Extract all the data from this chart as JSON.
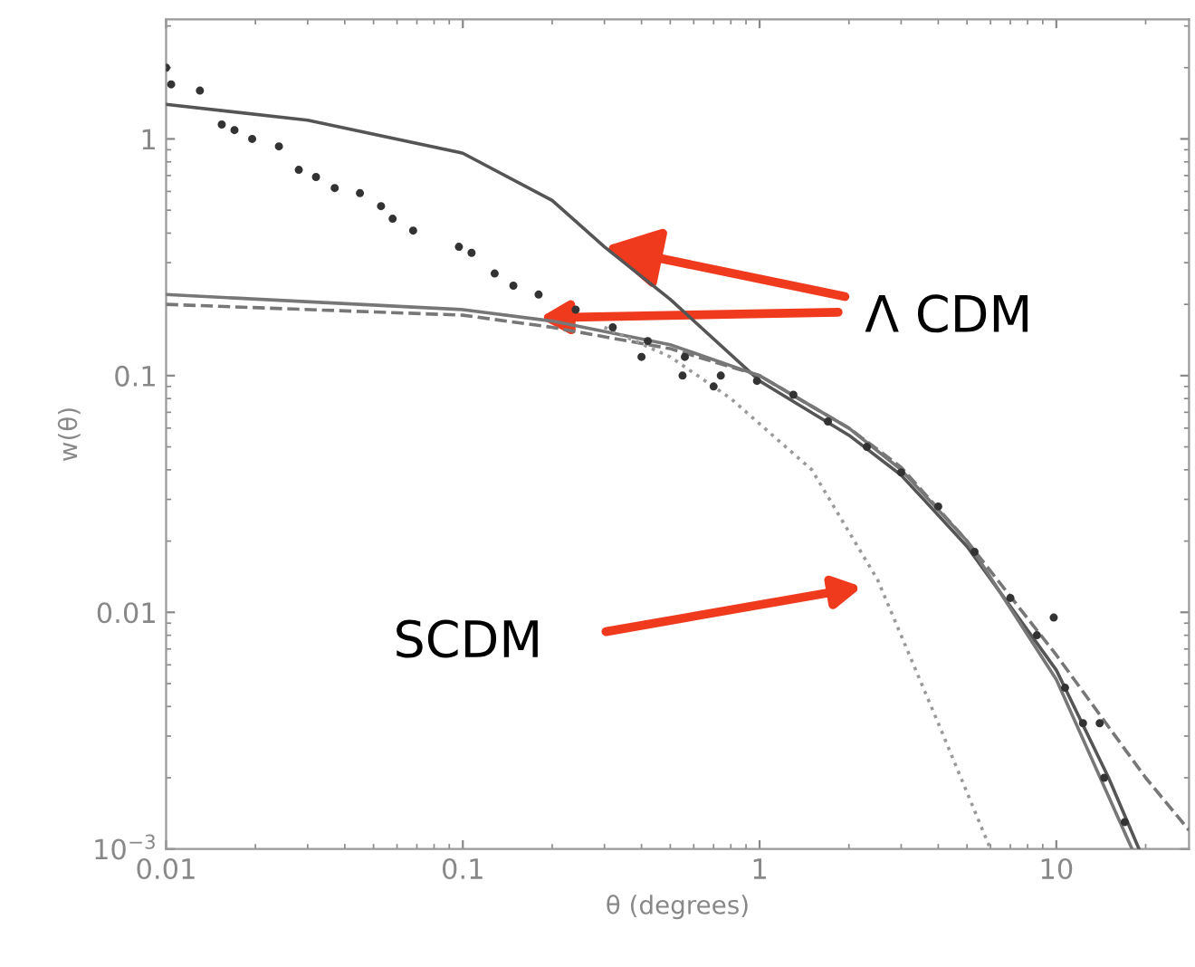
{
  "chart_data": {
    "type": "line",
    "xlabel": "θ (degrees)",
    "ylabel": "w(θ)",
    "log": "xy",
    "grid": false,
    "legend": false,
    "xlim": [
      0.01,
      28
    ],
    "ylim": [
      0.001,
      3.2
    ],
    "xticks": [
      0.01,
      0.1,
      1,
      10
    ],
    "yticks": [
      {
        "value": 0.001,
        "label": "10$^{−3}$"
      },
      0.01,
      0.1,
      1
    ],
    "series": [
      {
        "color": "#555555",
        "line_style": "solid",
        "x": [
          0.01,
          0.03,
          0.1,
          0.2,
          0.3,
          0.5,
          1,
          2,
          3,
          5,
          10,
          15,
          19
        ],
        "values": [
          1.4,
          1.2,
          0.87,
          0.55,
          0.35,
          0.21,
          0.095,
          0.056,
          0.038,
          0.019,
          0.0057,
          0.002,
          0.001
        ]
      },
      {
        "color": "#777777",
        "line_style": "solid",
        "x": [
          0.01,
          0.1,
          0.2,
          0.5,
          1,
          2,
          3,
          5,
          10,
          18
        ],
        "values": [
          0.22,
          0.19,
          0.17,
          0.135,
          0.1,
          0.06,
          0.04,
          0.02,
          0.0052,
          0.001
        ]
      },
      {
        "color": "#777777",
        "line_style": "dashed",
        "x": [
          0.01,
          0.1,
          0.2,
          0.5,
          1,
          2,
          3,
          5,
          10,
          20,
          28
        ],
        "values": [
          0.2,
          0.18,
          0.16,
          0.13,
          0.1,
          0.06,
          0.041,
          0.02,
          0.0066,
          0.002,
          0.0012
        ]
      },
      {
        "color": "#999999",
        "line_style": "dotted",
        "x": [
          0.3,
          0.5,
          0.8,
          1.5,
          2.5,
          4,
          6
        ],
        "values": [
          0.16,
          0.12,
          0.08,
          0.04,
          0.0137,
          0.0034,
          0.001
        ]
      },
      {
        "type": "scatter",
        "color": "#333333",
        "x": [
          0.01,
          0.0104,
          0.013,
          0.0154,
          0.017,
          0.0195,
          0.024,
          0.028,
          0.032,
          0.037,
          0.045,
          0.053,
          0.058,
          0.068,
          0.097,
          0.107,
          0.128,
          0.148,
          0.18,
          0.24,
          0.32,
          0.42,
          0.56,
          0.74,
          0.98,
          1.3,
          1.7,
          2.3,
          3,
          4,
          5.3,
          7,
          8.6,
          9.8,
          10.7,
          12.3,
          14,
          14.5,
          17,
          0.4,
          0.55,
          0.7
        ],
        "values": [
          2.0,
          1.7,
          1.6,
          1.15,
          1.09,
          1.0,
          0.93,
          0.74,
          0.69,
          0.62,
          0.59,
          0.52,
          0.46,
          0.41,
          0.35,
          0.33,
          0.27,
          0.24,
          0.22,
          0.19,
          0.16,
          0.14,
          0.12,
          0.1,
          0.095,
          0.083,
          0.064,
          0.05,
          0.039,
          0.028,
          0.018,
          0.0115,
          0.008,
          0.0095,
          0.0048,
          0.0034,
          0.0034,
          0.002,
          0.0013,
          0.12,
          0.1,
          0.09
        ]
      }
    ],
    "annotations": [
      {
        "text": "Λ CDM",
        "x": 0.3,
        "y": 0.35
      },
      "SCDM"
    ]
  }
}
